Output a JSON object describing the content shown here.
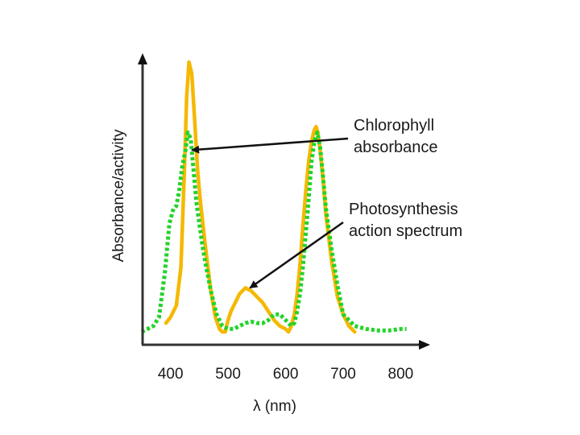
{
  "chart_data": {
    "type": "line",
    "xlabel": "λ (nm)",
    "ylabel": "Absorbance/activity",
    "xlim": [
      350,
      840
    ],
    "ylim": [
      0,
      1
    ],
    "x_ticks": [
      "400",
      "500",
      "600",
      "700",
      "800"
    ],
    "x_tick_values": [
      400,
      500,
      600,
      700,
      800
    ],
    "series": [
      {
        "key": "chlorophyll",
        "color": "#f5b800",
        "style": "solid",
        "x": [
          392,
          400,
          410,
          418,
          424,
          428,
          432,
          437,
          442,
          447,
          452,
          460,
          470,
          478,
          485,
          490,
          495,
          500,
          505,
          510,
          520,
          530,
          540,
          550,
          560,
          570,
          580,
          590,
          600,
          605,
          610,
          615,
          620,
          625,
          630,
          635,
          640,
          645,
          650,
          653,
          656,
          660,
          665,
          670,
          680,
          690,
          700,
          710,
          720
        ],
        "y": [
          0.03,
          0.05,
          0.09,
          0.22,
          0.55,
          0.8,
          0.92,
          0.88,
          0.72,
          0.55,
          0.44,
          0.3,
          0.14,
          0.05,
          0.01,
          0.0,
          0.0,
          0.04,
          0.07,
          0.09,
          0.13,
          0.15,
          0.14,
          0.12,
          0.1,
          0.07,
          0.04,
          0.02,
          0.01,
          0.0,
          0.02,
          0.06,
          0.13,
          0.23,
          0.36,
          0.48,
          0.58,
          0.65,
          0.69,
          0.7,
          0.68,
          0.62,
          0.52,
          0.4,
          0.24,
          0.12,
          0.06,
          0.02,
          0.0
        ]
      },
      {
        "key": "action",
        "color": "#22d32a",
        "style": "dotted",
        "x": [
          350,
          360,
          370,
          380,
          390,
          398,
          405,
          410,
          415,
          420,
          426,
          430,
          435,
          440,
          445,
          450,
          455,
          460,
          470,
          480,
          490,
          500,
          510,
          520,
          530,
          540,
          550,
          560,
          570,
          580,
          590,
          600,
          610,
          615,
          620,
          625,
          630,
          640,
          645,
          650,
          655,
          660,
          665,
          670,
          680,
          690,
          700,
          720,
          740,
          760,
          780,
          800,
          810
        ],
        "y": [
          0.0,
          0.01,
          0.02,
          0.05,
          0.2,
          0.37,
          0.42,
          0.43,
          0.48,
          0.56,
          0.62,
          0.68,
          0.66,
          0.55,
          0.44,
          0.37,
          0.3,
          0.24,
          0.14,
          0.06,
          0.02,
          0.01,
          0.01,
          0.02,
          0.03,
          0.035,
          0.03,
          0.03,
          0.04,
          0.06,
          0.06,
          0.04,
          0.02,
          0.03,
          0.07,
          0.13,
          0.22,
          0.45,
          0.58,
          0.65,
          0.68,
          0.63,
          0.53,
          0.42,
          0.28,
          0.16,
          0.06,
          0.02,
          0.01,
          0.005,
          0.005,
          0.01,
          0.01
        ]
      }
    ],
    "annotations": [
      {
        "key": "chlorophyll",
        "lines": [
          "Chlorophyll",
          "absorbance"
        ],
        "points_to": {
          "x": 437,
          "y": 0.62
        }
      },
      {
        "key": "action",
        "lines": [
          "Photosynthesis",
          "action spectrum"
        ],
        "points_to": {
          "x": 538,
          "y": 0.15
        }
      }
    ]
  }
}
